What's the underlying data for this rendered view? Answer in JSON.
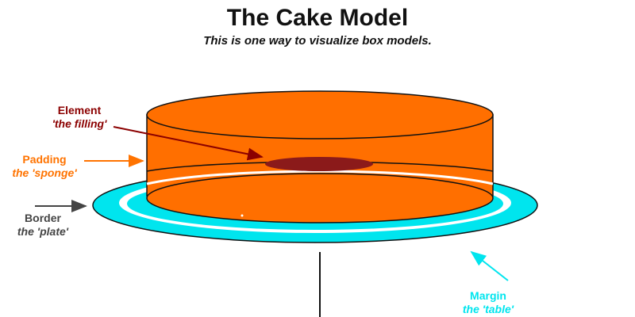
{
  "title": "The Cake Model",
  "subtitle": "This is one way to visualize box models.",
  "labels": {
    "element": {
      "name": "Element",
      "desc": "'the filling'",
      "color": "#8b0000"
    },
    "padding": {
      "name": "Padding",
      "desc": "the 'sponge'",
      "color": "#ff7300"
    },
    "border": {
      "name": "Border",
      "desc": "the 'plate'",
      "color": "#444444"
    },
    "margin": {
      "name": "Margin",
      "desc": "the 'table'",
      "color": "#00e5ee"
    }
  },
  "colors": {
    "sponge": "#ff6f00",
    "filling": "#8b1a1a",
    "plate": "#00e5ee",
    "table_leg": "#111111"
  }
}
